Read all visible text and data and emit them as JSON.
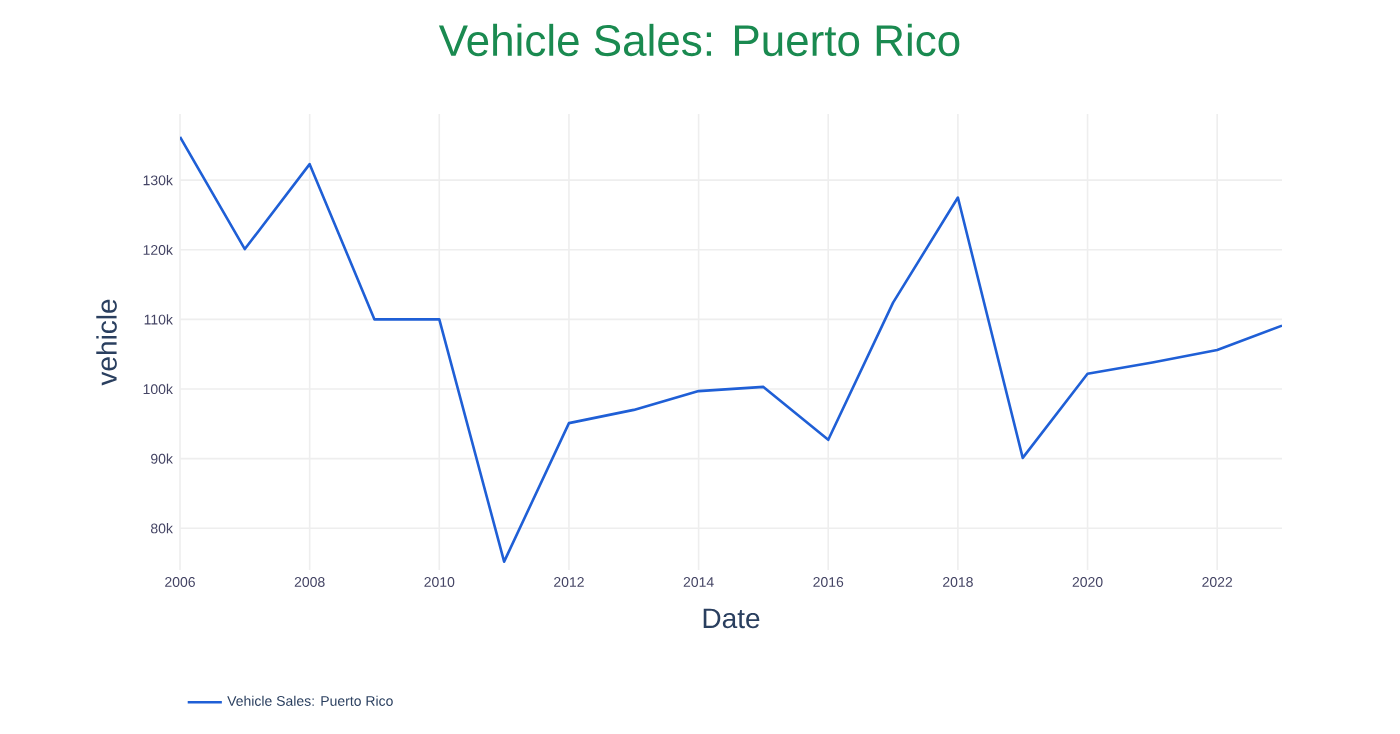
{
  "chart_data": {
    "type": "line",
    "title": "Vehicle Sales: Puerto Rico",
    "xlabel": "Date",
    "ylabel": "vehicle",
    "x": [
      2006,
      2007,
      2008,
      2009,
      2010,
      2011,
      2012,
      2013,
      2014,
      2015,
      2016,
      2017,
      2018,
      2019,
      2020,
      2021,
      2022,
      2023
    ],
    "series": [
      {
        "name": "Vehicle Sales: Puerto Rico",
        "color": "#1f5fd6",
        "values": [
          136200,
          120100,
          132300,
          110000,
          110000,
          75200,
          95100,
          97000,
          99700,
          100300,
          92700,
          112400,
          127500,
          90100,
          102200,
          103800,
          105600,
          109100
        ]
      }
    ],
    "xlim": [
      2006,
      2023
    ],
    "xticks": [
      2006,
      2008,
      2010,
      2012,
      2014,
      2016,
      2018,
      2020,
      2022
    ],
    "ylim": [
      74000,
      139500
    ],
    "yticks": [
      {
        "value": 80000,
        "label": "80k"
      },
      {
        "value": 90000,
        "label": "90k"
      },
      {
        "value": 100000,
        "label": "100k"
      },
      {
        "value": 110000,
        "label": "110k"
      },
      {
        "value": 120000,
        "label": "120k"
      },
      {
        "value": 130000,
        "label": "130k"
      }
    ],
    "grid": true,
    "legend": "bottom",
    "marker": "none",
    "line_style": "solid"
  }
}
